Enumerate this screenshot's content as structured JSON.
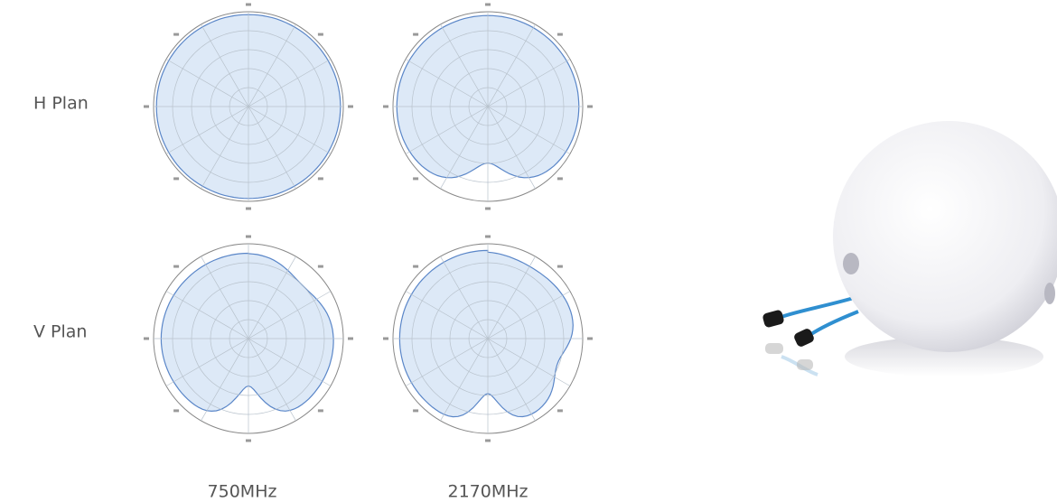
{
  "rows": [
    {
      "label": "H Plan"
    },
    {
      "label": "V Plan"
    }
  ],
  "columns": [
    "750MHz",
    "2170MHz"
  ]
}
